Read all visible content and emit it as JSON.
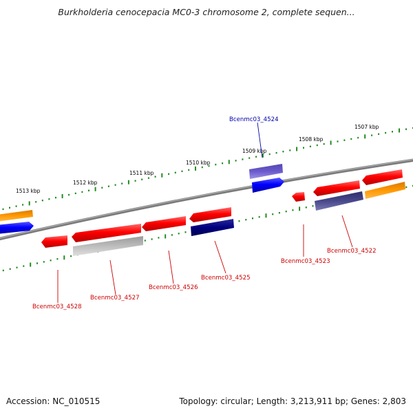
{
  "header": {
    "title": "Burkholderia cenocepacia MC0-3 chromosome 2, complete sequen..."
  },
  "scale": {
    "ticks": [
      "1513 kbp",
      "1512 kbp",
      "1511 kbp",
      "1510 kbp",
      "1509 kbp",
      "1508 kbp",
      "1507 kbp"
    ]
  },
  "genes": {
    "top": [
      "Bcenmc03_4524"
    ],
    "bottom": [
      "Bcenmc03_4528",
      "Bcenmc03_4527",
      "Bcenmc03_4526",
      "Bcenmc03_4525",
      "Bcenmc03_4523",
      "Bcenmc03_4522"
    ]
  },
  "colors": {
    "forward_gene": "#0000ff",
    "reverse_gene": "#ff0000",
    "orange_feature": "#ff9900",
    "navy_feature": "#000080",
    "purple_feature": "#6a5acd",
    "grey_feature": "#bbbbbb",
    "tick_green": "#228b22",
    "backbone": "#808080",
    "label_red": "#cc0000",
    "label_blue": "#0000aa"
  },
  "footer": {
    "accession": "Accession: NC_010515",
    "summary": "Topology: circular; Length: 3,213,911 bp; Genes: 2,803"
  }
}
